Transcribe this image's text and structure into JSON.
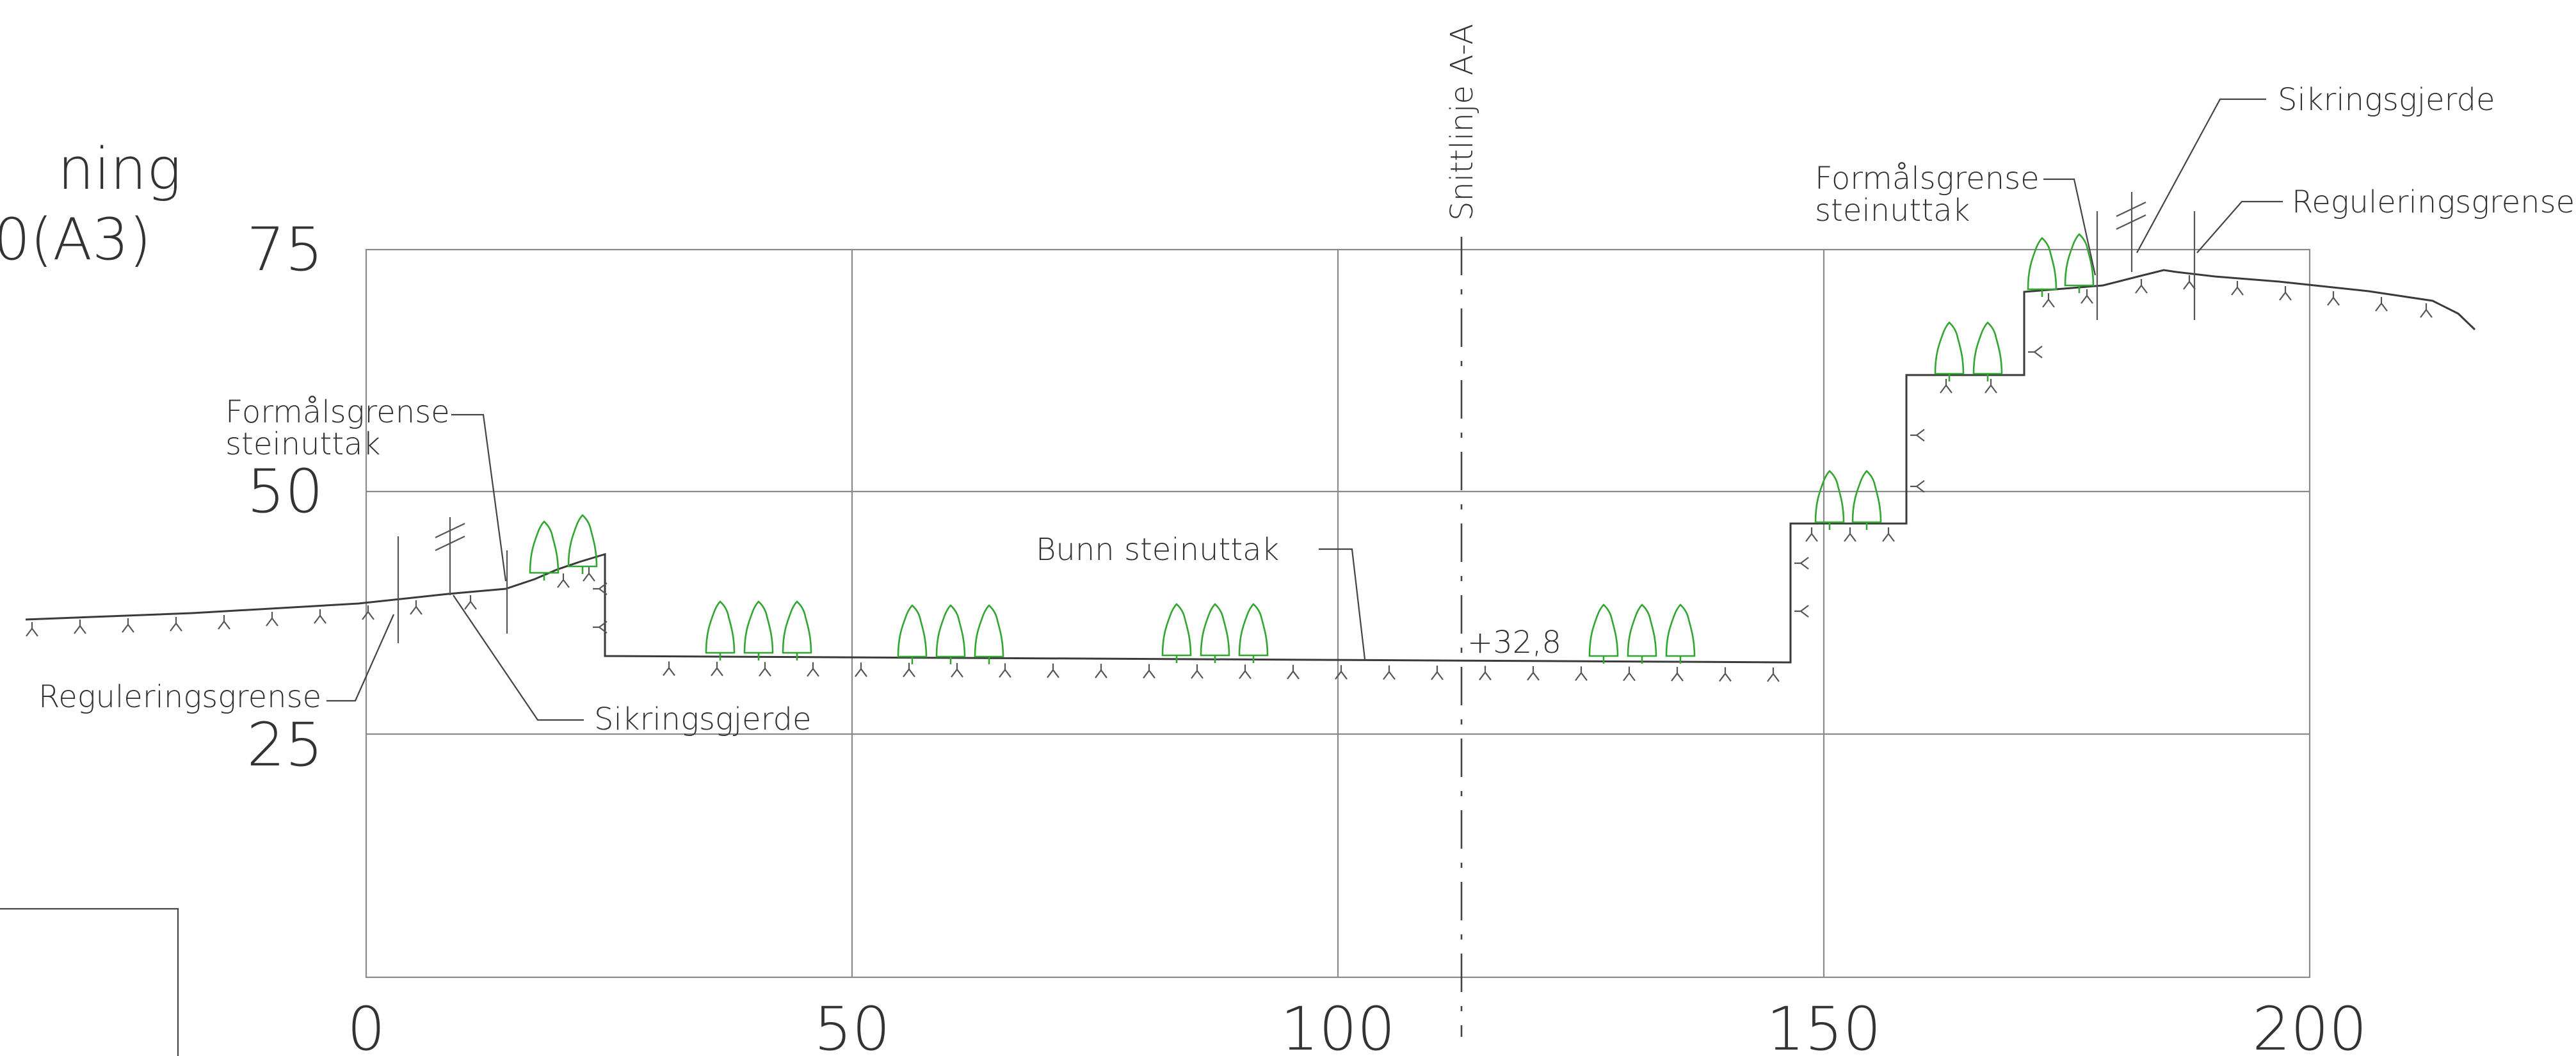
{
  "drawing": {
    "title_fragment_line1": "ning",
    "title_fragment_line2": "0(A3)",
    "section_line_label": "Snittlinje A-A"
  },
  "axes": {
    "x_ticks": [
      "0",
      "50",
      "100",
      "150",
      "200"
    ],
    "y_ticks": [
      "75",
      "50",
      "25"
    ]
  },
  "annotations": {
    "left_formalsgrense_line1": "Formålsgrense",
    "left_formalsgrense_line2": "steinuttak",
    "left_reguleringsgrense": "Reguleringsgrense",
    "left_sikringsgjerde": "Sikringsgjerde",
    "bunn_steinuttak": "Bunn steinuttak",
    "elevation_label": "+32,8",
    "right_formalsgrense_line1": "Formålsgrense",
    "right_formalsgrense_line2": "steinuttak",
    "right_sikringsgjerde": "Sikringsgjerde",
    "right_reguleringsgrense": "Reguleringsgrense"
  },
  "colors": {
    "vegetation": "#33a532",
    "lines": "#3a3a3a",
    "grid": "#8a8a8a"
  },
  "icons": [
    "tree-symbol-icon",
    "fence-symbol-icon",
    "terrain-hatch-icon"
  ]
}
